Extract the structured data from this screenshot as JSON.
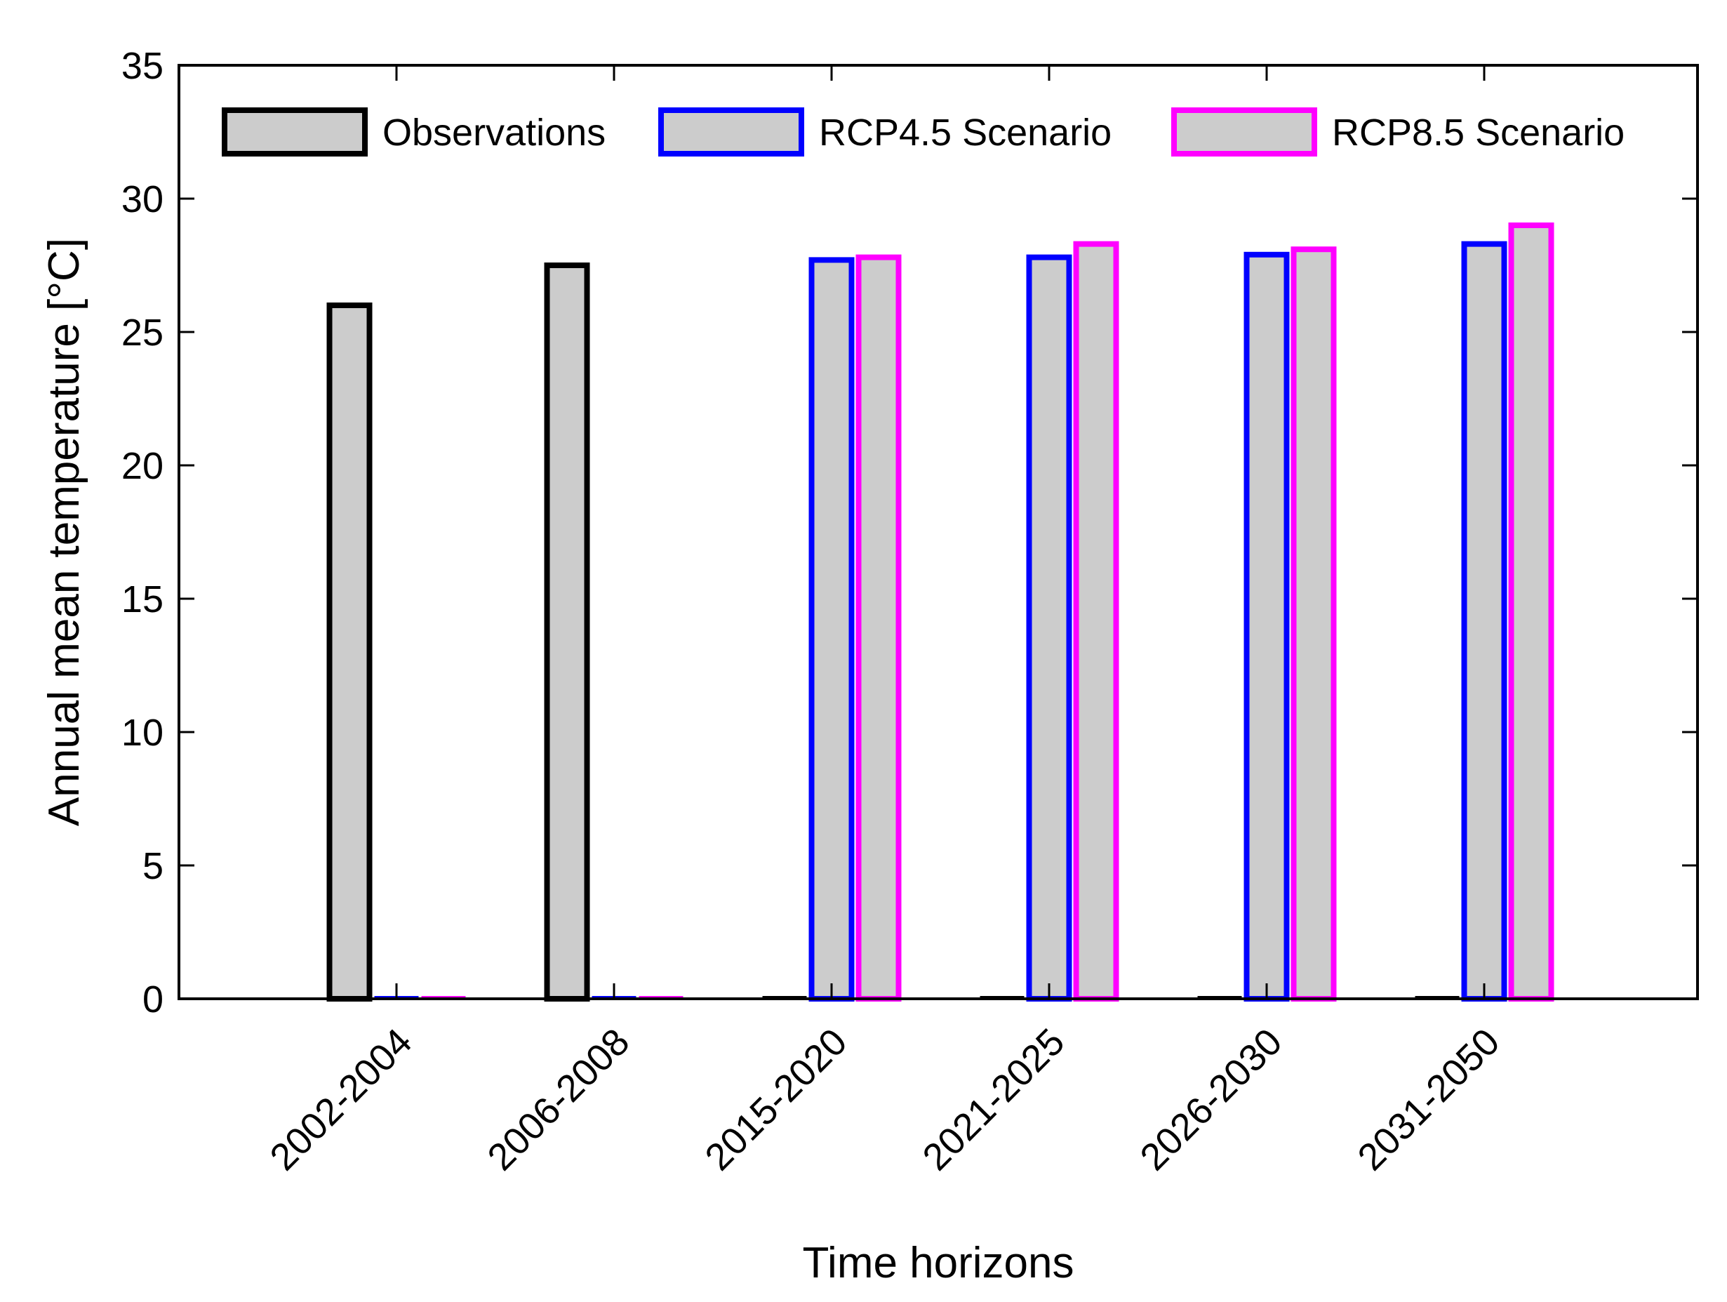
{
  "chart_data": {
    "type": "bar",
    "title": "",
    "xlabel": "Time horizons",
    "ylabel": "Annual mean temperature [°C]",
    "ylim": [
      0,
      35
    ],
    "yticks": [
      0,
      5,
      10,
      15,
      20,
      25,
      30,
      35
    ],
    "categories": [
      "2002-2004",
      "2006-2008",
      "2015-2020",
      "2021-2025",
      "2026-2030",
      "2031-2050"
    ],
    "series": [
      {
        "name": "Observations",
        "edge_color": "#000000",
        "fill_color": "#cccccc",
        "values": [
          26.0,
          27.5,
          0,
          0,
          0,
          0
        ]
      },
      {
        "name": "RCP4.5 Scenario",
        "edge_color": "#0000ff",
        "fill_color": "#cccccc",
        "values": [
          0,
          0,
          27.7,
          27.8,
          27.9,
          28.3
        ]
      },
      {
        "name": "RCP8.5 Scenario",
        "edge_color": "#ff00ff",
        "fill_color": "#cccccc",
        "values": [
          0,
          0,
          27.8,
          28.3,
          28.1,
          29.0
        ]
      }
    ],
    "grid": false,
    "legend_position": "top, horizontal"
  }
}
